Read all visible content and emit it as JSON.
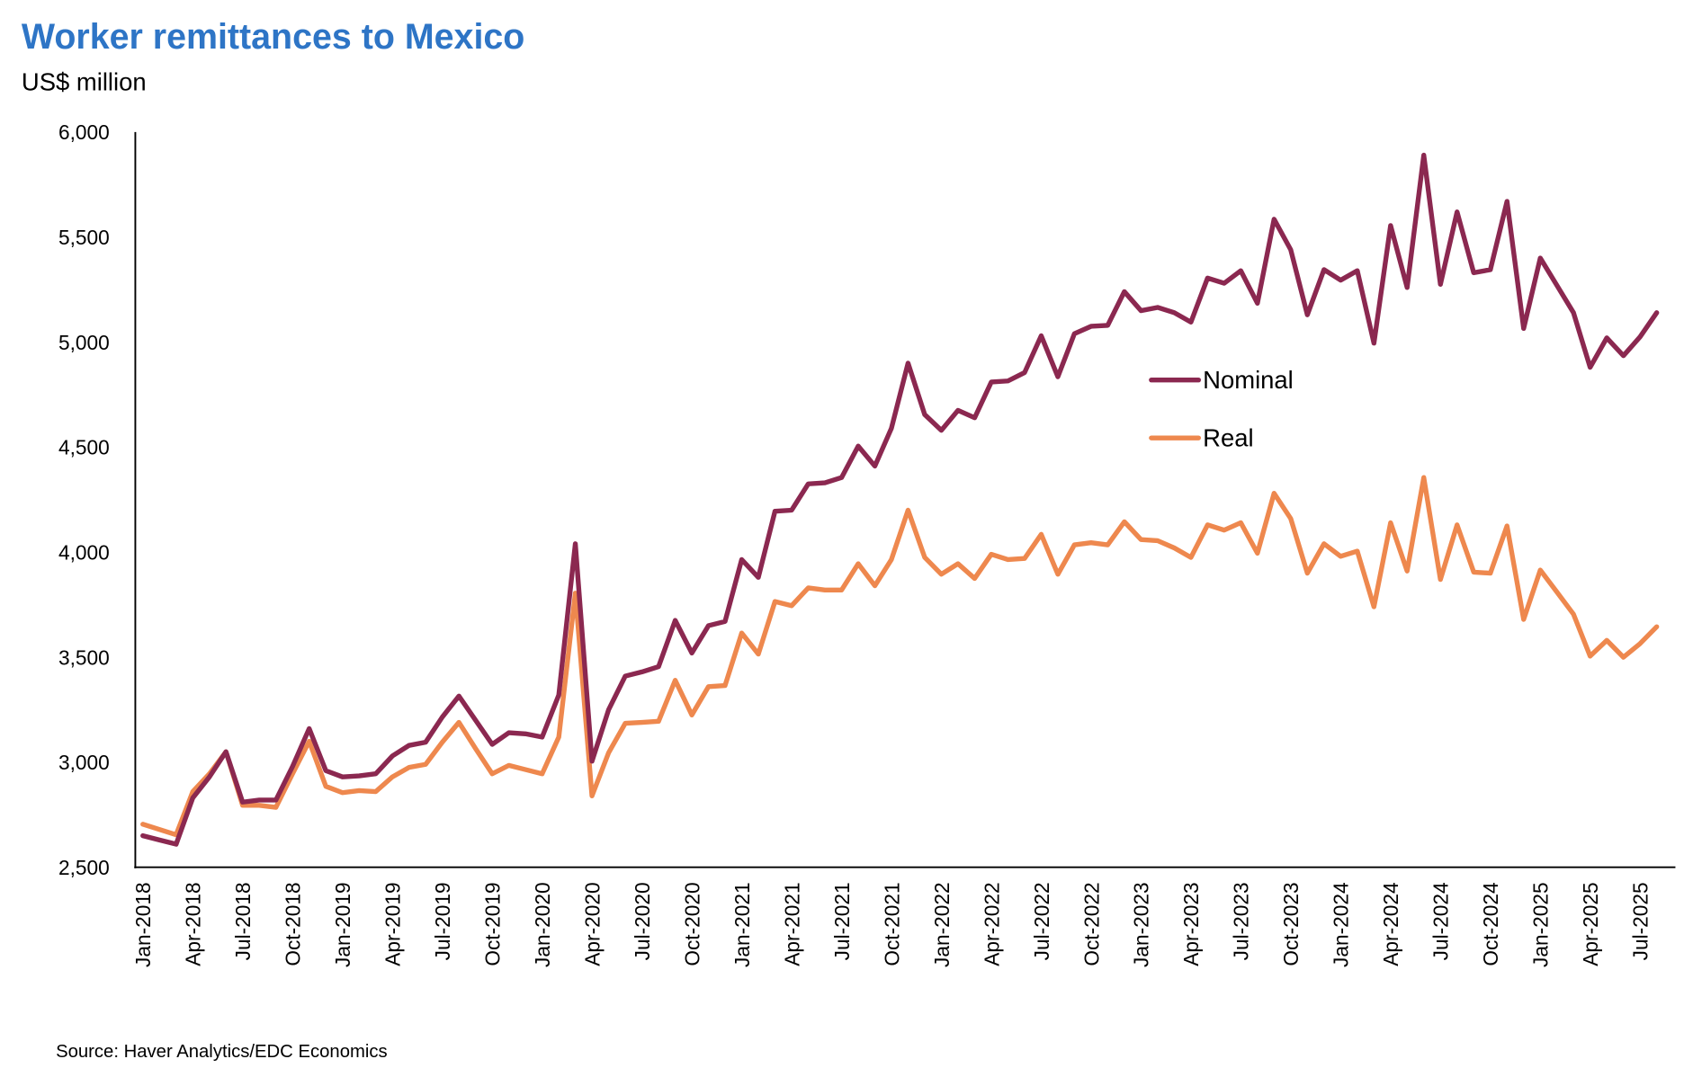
{
  "chart_data": {
    "type": "line",
    "title": "Worker remittances to Mexico",
    "subtitle": "US$ million",
    "source": "Source: Haver Analytics/EDC Economics",
    "ylim": [
      2500,
      6000
    ],
    "y_ticks": [
      "2,500",
      "3,000",
      "3,500",
      "4,000",
      "4,500",
      "5,000",
      "5,500",
      "6,000"
    ],
    "y_tick_values": [
      2500,
      3000,
      3500,
      4000,
      4500,
      5000,
      5500,
      6000
    ],
    "grid": false,
    "legend_position": "center-right",
    "x_tick_labels": [
      "Jan-2018",
      "Apr-2018",
      "Jul-2018",
      "Oct-2018",
      "Jan-2019",
      "Apr-2019",
      "Jul-2019",
      "Oct-2019",
      "Jan-2020",
      "Apr-2020",
      "Jul-2020",
      "Oct-2020",
      "Jan-2021",
      "Apr-2021",
      "Jul-2021",
      "Oct-2021",
      "Jan-2022",
      "Apr-2022",
      "Jul-2022",
      "Oct-2022",
      "Jan-2023",
      "Apr-2023",
      "Jul-2023",
      "Oct-2023",
      "Jan-2024",
      "Apr-2024",
      "Jul-2024",
      "Oct-2024",
      "Jan-2025",
      "Apr-2025",
      "Jul-2025"
    ],
    "x": [
      "2018-01",
      "2018-02",
      "2018-03",
      "2018-04",
      "2018-05",
      "2018-06",
      "2018-07",
      "2018-08",
      "2018-09",
      "2018-10",
      "2018-11",
      "2018-12",
      "2019-01",
      "2019-02",
      "2019-03",
      "2019-04",
      "2019-05",
      "2019-06",
      "2019-07",
      "2019-08",
      "2019-09",
      "2019-10",
      "2019-11",
      "2019-12",
      "2020-01",
      "2020-02",
      "2020-03",
      "2020-04",
      "2020-05",
      "2020-06",
      "2020-07",
      "2020-08",
      "2020-09",
      "2020-10",
      "2020-11",
      "2020-12",
      "2021-01",
      "2021-02",
      "2021-03",
      "2021-04",
      "2021-05",
      "2021-06",
      "2021-07",
      "2021-08",
      "2021-09",
      "2021-10",
      "2021-11",
      "2021-12",
      "2022-01",
      "2022-02",
      "2022-03",
      "2022-04",
      "2022-05",
      "2022-06",
      "2022-07",
      "2022-08",
      "2022-09",
      "2022-10",
      "2022-11",
      "2022-12",
      "2023-01",
      "2023-02",
      "2023-03",
      "2023-04",
      "2023-05",
      "2023-06",
      "2023-07",
      "2023-08",
      "2023-09",
      "2023-10",
      "2023-11",
      "2023-12",
      "2024-01",
      "2024-02",
      "2024-03",
      "2024-04",
      "2024-05",
      "2024-06",
      "2024-07",
      "2024-08",
      "2024-09",
      "2024-10",
      "2024-11",
      "2024-12",
      "2025-01",
      "2025-02",
      "2025-03",
      "2025-04",
      "2025-05",
      "2025-06",
      "2025-07",
      "2025-08"
    ],
    "series": [
      {
        "name": "Nominal",
        "color": "#8B2850",
        "values": [
          2650,
          2630,
          2610,
          2830,
          2930,
          3050,
          2810,
          2820,
          2820,
          2980,
          3160,
          2960,
          2930,
          2935,
          2945,
          3030,
          3080,
          3095,
          3215,
          3315,
          3200,
          3085,
          3140,
          3135,
          3120,
          3320,
          4040,
          3005,
          3250,
          3410,
          3430,
          3455,
          3675,
          3520,
          3650,
          3670,
          3965,
          3880,
          4195,
          4200,
          4325,
          4330,
          4355,
          4505,
          4410,
          4590,
          4900,
          4655,
          4580,
          4675,
          4640,
          4810,
          4815,
          4855,
          5030,
          4835,
          5040,
          5075,
          5080,
          5240,
          5150,
          5165,
          5140,
          5095,
          5305,
          5280,
          5340,
          5185,
          5585,
          5440,
          5130,
          5345,
          5295,
          5340,
          4995,
          5555,
          5260,
          5890,
          5275,
          5620,
          5330,
          5345,
          5670,
          5065,
          5400,
          5270,
          5140,
          4880,
          5020,
          4935,
          5025,
          5140
        ]
      },
      {
        "name": "Real",
        "color": "#EE884E",
        "values": [
          2705,
          2680,
          2655,
          2860,
          2945,
          3050,
          2795,
          2795,
          2785,
          2945,
          3100,
          2885,
          2855,
          2865,
          2860,
          2930,
          2975,
          2990,
          3095,
          3190,
          3065,
          2945,
          2985,
          2965,
          2945,
          3120,
          3805,
          2840,
          3045,
          3185,
          3190,
          3195,
          3390,
          3225,
          3360,
          3365,
          3615,
          3515,
          3765,
          3745,
          3830,
          3820,
          3820,
          3945,
          3840,
          3965,
          4200,
          3975,
          3895,
          3945,
          3875,
          3990,
          3965,
          3970,
          4085,
          3895,
          4035,
          4045,
          4035,
          4145,
          4060,
          4055,
          4020,
          3975,
          4130,
          4105,
          4140,
          3995,
          4280,
          4160,
          3900,
          4040,
          3980,
          4005,
          3740,
          4140,
          3910,
          4355,
          3870,
          4130,
          3905,
          3900,
          4125,
          3680,
          3915,
          3810,
          3705,
          3505,
          3580,
          3500,
          3565,
          3645
        ]
      }
    ],
    "title_color": "#2E75C6"
  }
}
